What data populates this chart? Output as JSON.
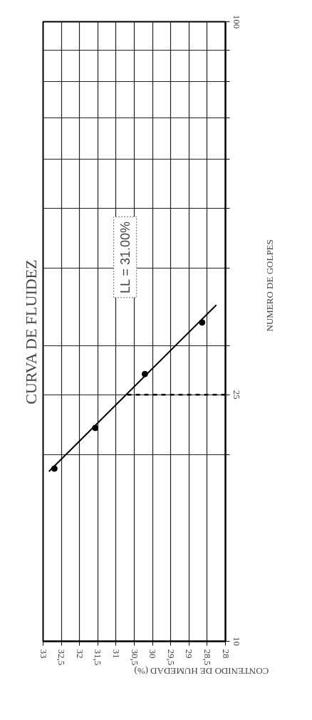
{
  "chart_data": {
    "type": "scatter",
    "title": "CURVA DE FLUIDEZ",
    "xlabel": "CONTENIDO DE HUMEDAD (%)",
    "ylabel": "NUMERO DE GOLPES",
    "log": "y",
    "grid": true,
    "marker": "circle",
    "ylim": [
      10,
      100
    ],
    "yticks": [
      10,
      {
        "value": 20,
        "label": null
      },
      {
        "value": 25,
        "label": "25"
      },
      {
        "value": 30,
        "label": null
      },
      {
        "value": 40,
        "label": null
      },
      {
        "value": 50,
        "label": null
      },
      {
        "value": 60,
        "label": null
      },
      {
        "value": 70,
        "label": null
      },
      {
        "value": 80,
        "label": null
      },
      {
        "value": 90,
        "label": null
      },
      100
    ],
    "xlim": [
      33,
      28
    ],
    "xticks": [
      28,
      {
        "value": 28.5,
        "label": "28,5"
      },
      29,
      {
        "value": 29.5,
        "label": "29,5"
      },
      30,
      {
        "value": 30.5,
        "label": "30,5"
      },
      31,
      {
        "value": 31.5,
        "label": "31,5"
      },
      32,
      {
        "value": 32.5,
        "label": "32,5"
      },
      33
    ],
    "series": [
      {
        "color": "#000000",
        "x": [
          32.69,
          31.57,
          30.21,
          28.64
        ],
        "values": [
          19,
          22.1,
          27,
          32.7
        ]
      },
      {
        "type": "line",
        "color": "#000000",
        "line_style": "solid",
        "marker": "none",
        "x": [
          32.84,
          28.25
        ],
        "values": [
          18.8,
          34.9
        ]
      },
      {
        "type": "line",
        "color": "#000000",
        "line_style": "dashed",
        "marker": "none",
        "x": [
          28,
          30.8
        ],
        "values": [
          25,
          25
        ]
      }
    ],
    "annotations": [
      "LL = 31.00%"
    ]
  }
}
